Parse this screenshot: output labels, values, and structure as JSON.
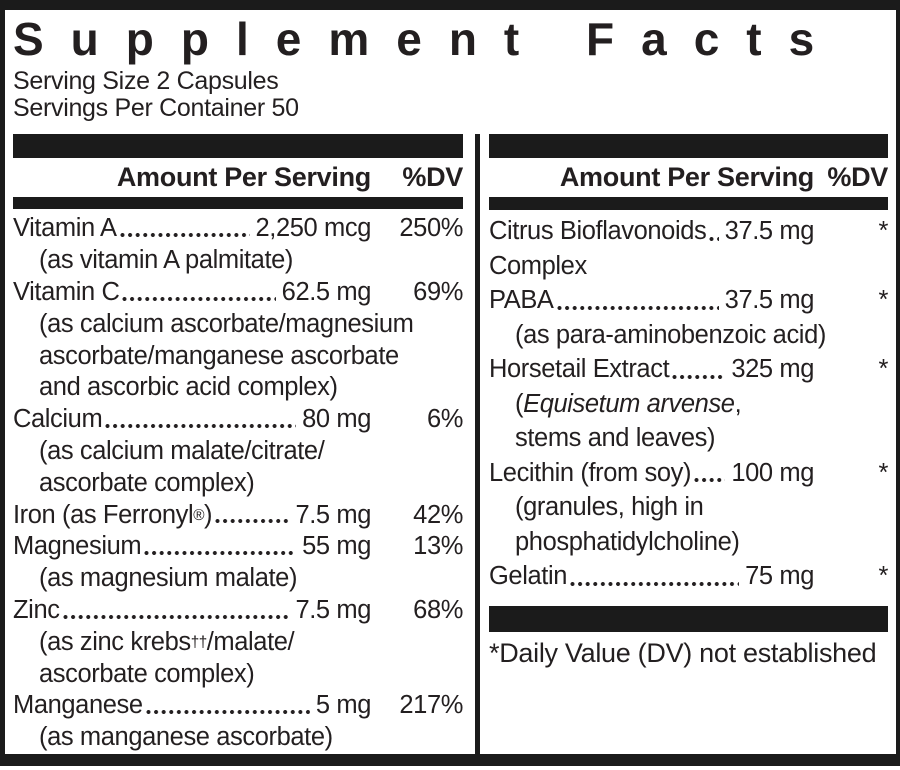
{
  "title": "Supplement Facts",
  "serving": {
    "size": "Serving Size 2 Capsules",
    "per_container": "Servings Per Container 50"
  },
  "columns": {
    "header": {
      "amount": "Amount Per Serving",
      "dv": "%DV"
    },
    "left": {
      "rows": [
        {
          "type": "row",
          "name": "Vitamin A",
          "amount": "2,250 mcg",
          "dv": "250%"
        },
        {
          "type": "sub",
          "text": "(as vitamin A palmitate)"
        },
        {
          "type": "row",
          "name": "Vitamin C",
          "amount": "62.5 mg",
          "dv": "69%"
        },
        {
          "type": "sub",
          "text": "(as calcium ascorbate/magnesium"
        },
        {
          "type": "sub",
          "text": "ascorbate/manganese ascorbate"
        },
        {
          "type": "sub",
          "text": "and ascorbic acid complex)"
        },
        {
          "type": "row",
          "name": "Calcium",
          "amount": "80 mg",
          "dv": "6%"
        },
        {
          "type": "sub",
          "text": "(as calcium malate/citrate/"
        },
        {
          "type": "sub",
          "text": "ascorbate complex)"
        },
        {
          "type": "row",
          "name": "Iron (as Ferronyl",
          "name_sup": "®",
          "name_suffix": ")",
          "amount": "7.5 mg",
          "dv": "42%"
        },
        {
          "type": "row",
          "name": "Magnesium",
          "amount": "55 mg",
          "dv": "13%"
        },
        {
          "type": "sub",
          "text": "(as magnesium malate)"
        },
        {
          "type": "row",
          "name": "Zinc",
          "amount": "7.5 mg",
          "dv": "68%"
        },
        {
          "type": "sub_sup",
          "prefix": "(as zinc krebs",
          "sup": "††",
          "suffix": "/malate/"
        },
        {
          "type": "sub",
          "text": "ascorbate complex)"
        },
        {
          "type": "row",
          "name": "Manganese",
          "amount": "5 mg",
          "dv": "217%"
        },
        {
          "type": "sub",
          "text": "(as manganese ascorbate)"
        }
      ]
    },
    "right": {
      "rows": [
        {
          "type": "row",
          "name": "Citrus Bioflavonoids",
          "amount": "37.5 mg",
          "dv": "*"
        },
        {
          "type": "sub",
          "text": "Complex",
          "indent": false
        },
        {
          "type": "row",
          "name": "PABA",
          "amount": "37.5 mg",
          "dv": "*"
        },
        {
          "type": "sub",
          "text": "(as para-aminobenzoic acid)"
        },
        {
          "type": "row",
          "name": "Horsetail Extract",
          "amount": "325 mg",
          "dv": "*"
        },
        {
          "type": "sub_italic",
          "prefix": "(",
          "italic": "Equisetum arvense",
          "suffix": ","
        },
        {
          "type": "sub",
          "text": "stems and leaves)"
        },
        {
          "type": "row",
          "name": "Lecithin (from soy)",
          "amount": "100 mg",
          "dv": "*"
        },
        {
          "type": "sub",
          "text": "(granules, high in"
        },
        {
          "type": "sub",
          "text": "phosphatidylcholine)"
        },
        {
          "type": "row",
          "name": "Gelatin",
          "amount": "75 mg",
          "dv": "*"
        }
      ]
    }
  },
  "footnote": "*Daily Value (DV) not established",
  "colors": {
    "ink": "#231f20",
    "bar": "#1b1b1b",
    "background": "#ffffff"
  }
}
